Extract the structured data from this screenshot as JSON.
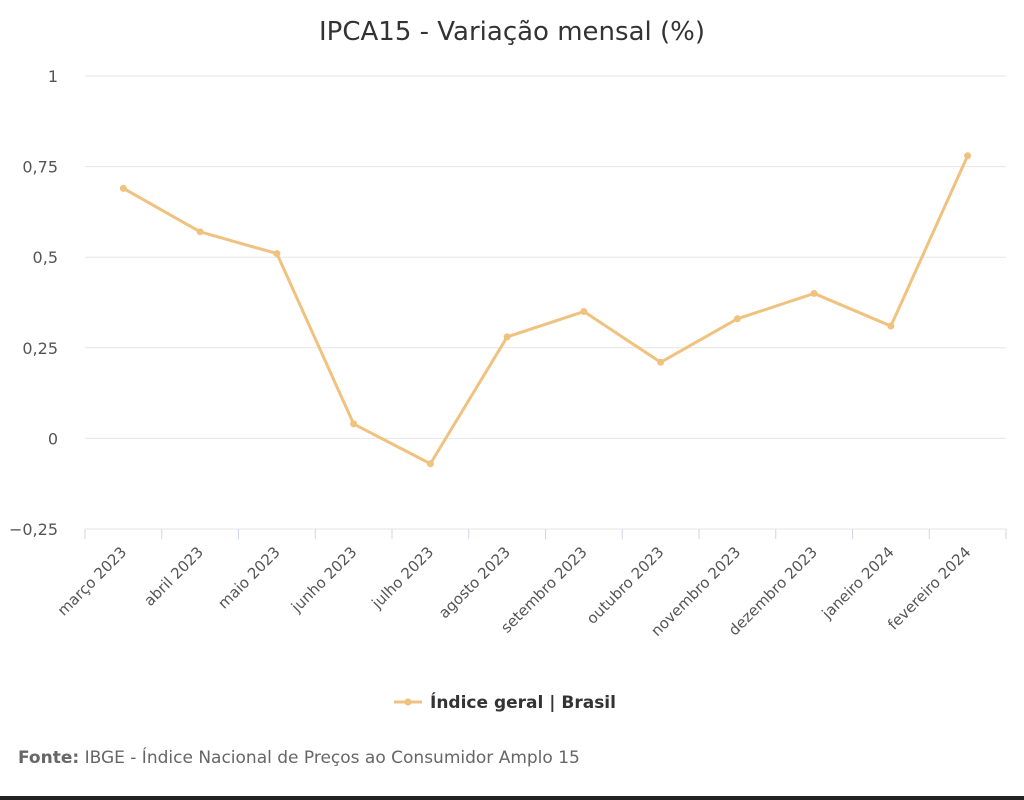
{
  "chart_data": {
    "type": "line",
    "title": "IPCA15 - Variação mensal (%)",
    "xlabel": "",
    "ylabel": "",
    "categories": [
      "março 2023",
      "abril 2023",
      "maio 2023",
      "junho 2023",
      "julho 2023",
      "agosto 2023",
      "setembro 2023",
      "outubro 2023",
      "novembro 2023",
      "dezembro 2023",
      "janeiro 2024",
      "fevereiro 2024"
    ],
    "series": [
      {
        "name": "Índice geral | Brasil",
        "values": [
          0.69,
          0.57,
          0.51,
          0.04,
          -0.07,
          0.28,
          0.35,
          0.21,
          0.33,
          0.4,
          0.31,
          0.78
        ]
      }
    ],
    "ylim": [
      -0.25,
      1
    ],
    "yticks": [
      1,
      0.75,
      0.5,
      0.25,
      0,
      -0.25
    ],
    "ytick_labels": [
      "1",
      "0,75",
      "0,5",
      "0,25",
      "0",
      "−0,25"
    ],
    "grid": true,
    "legend_position": "bottom-center",
    "colors": {
      "series": "#f0c27f",
      "grid": "#e6e6e6"
    }
  },
  "source": {
    "label": "Fonte:",
    "text": "IBGE - Índice Nacional de Preços ao Consumidor Amplo 15"
  }
}
